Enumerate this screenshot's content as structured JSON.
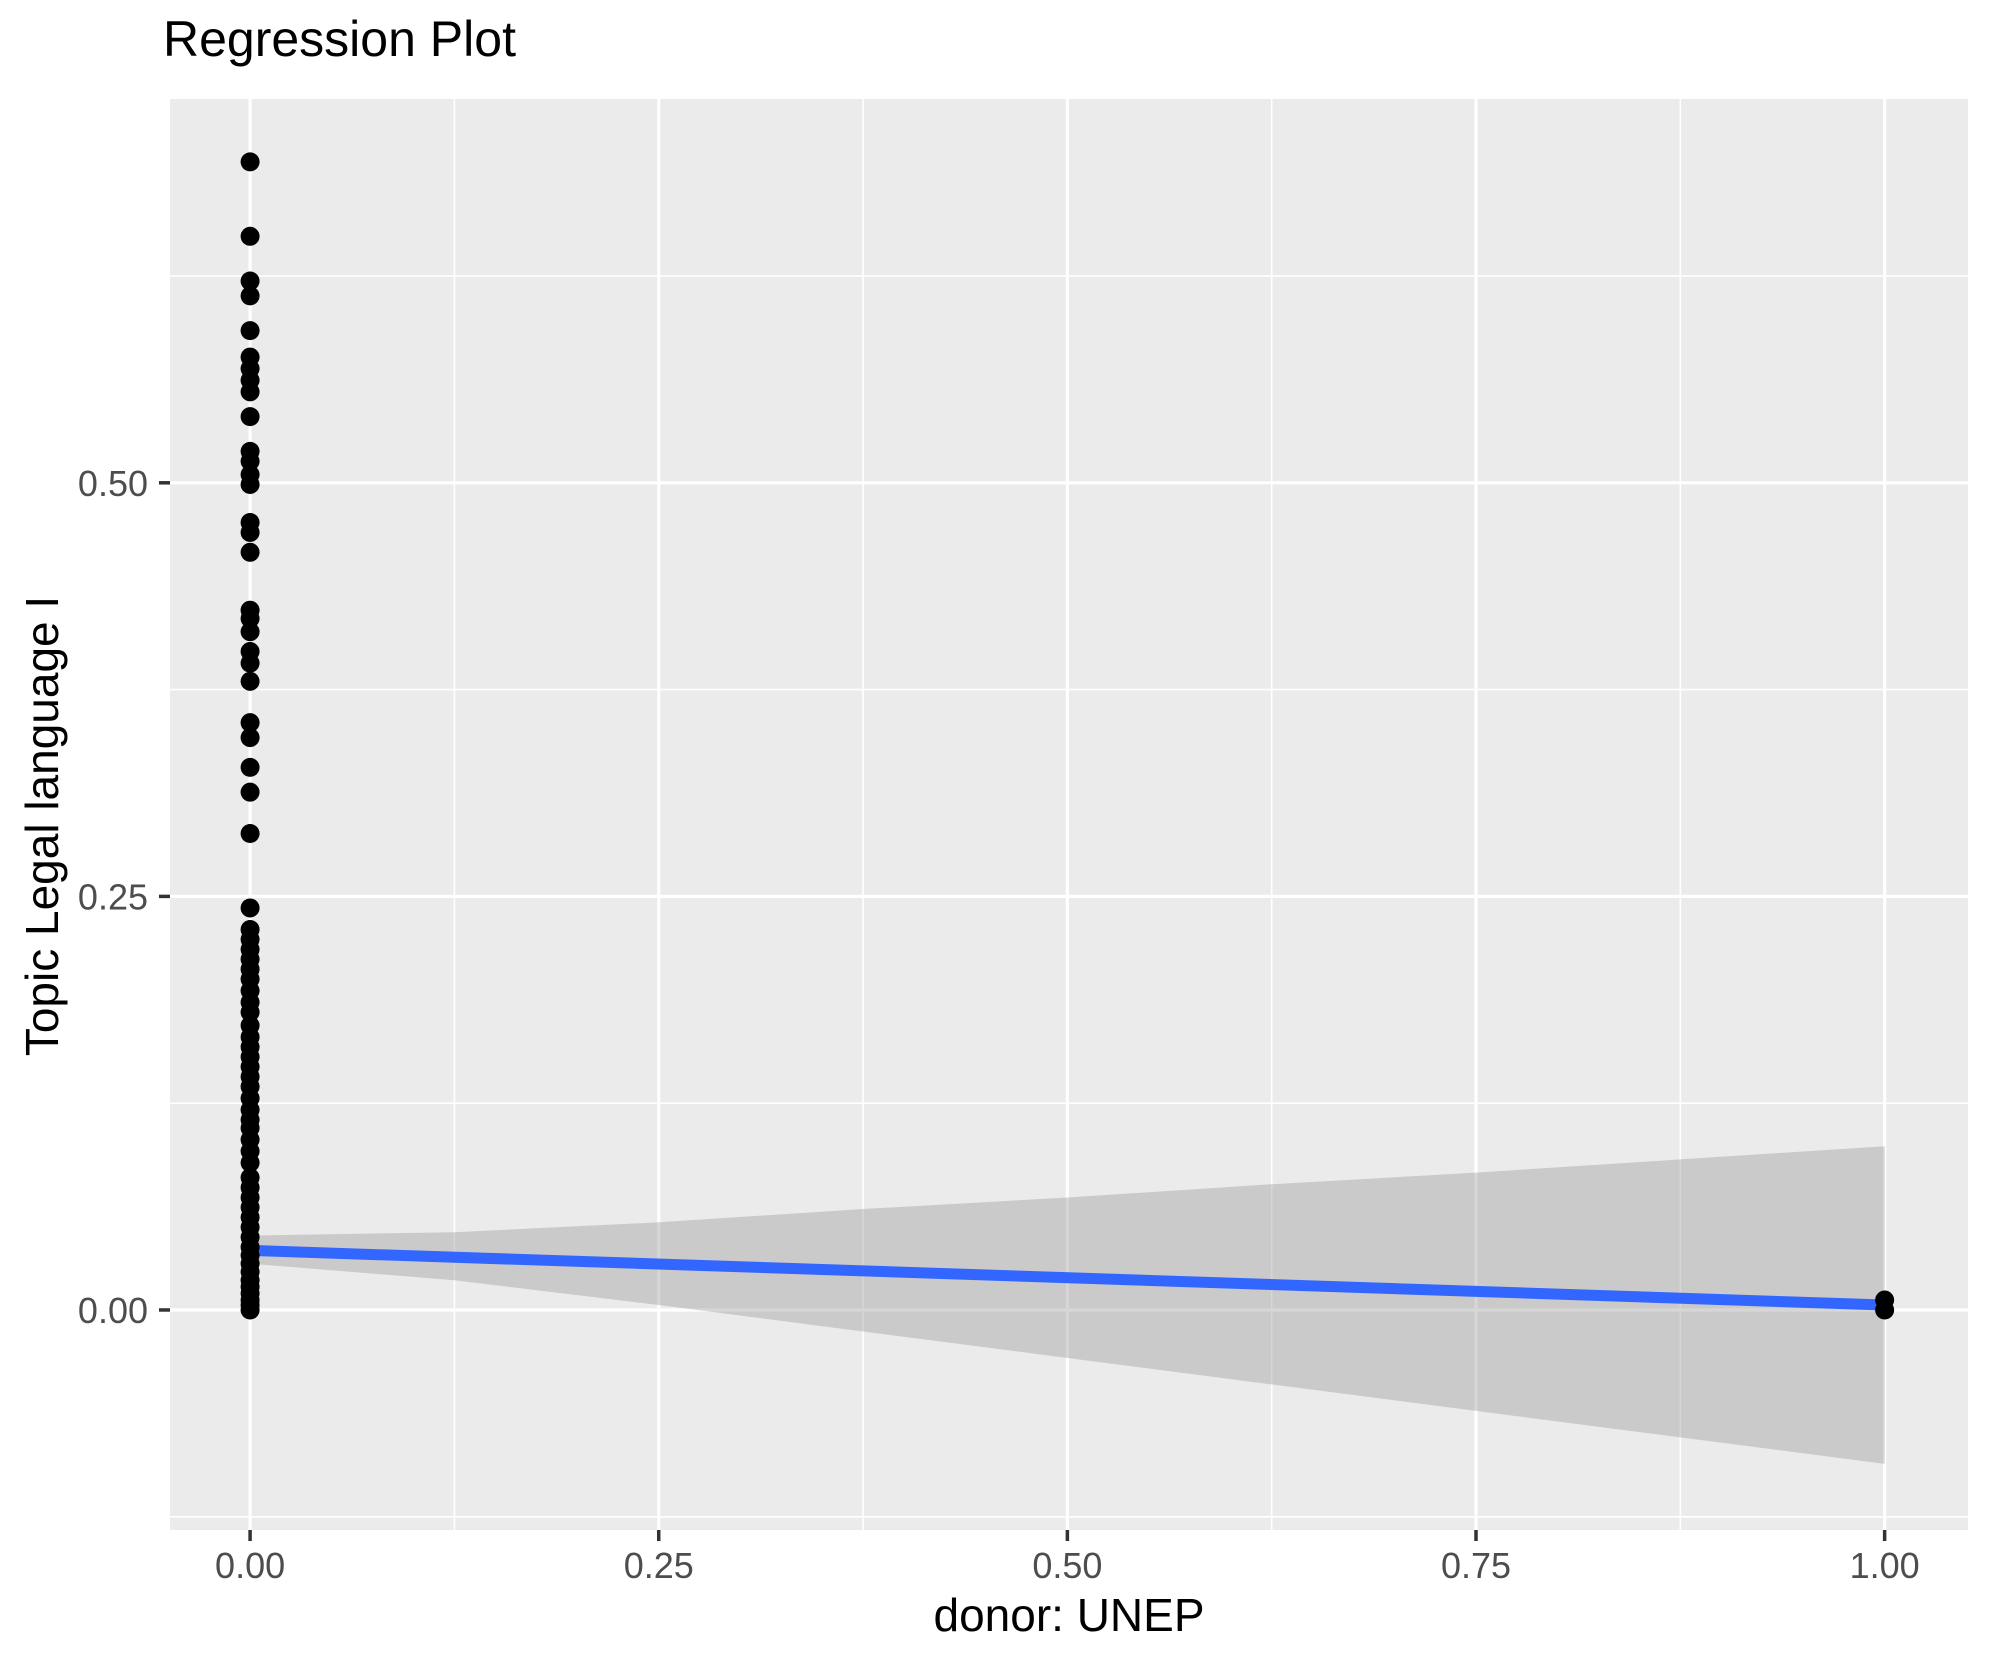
{
  "title": "Regression Plot",
  "axes": {
    "x": {
      "label": "donor: UNEP",
      "ticks": [
        {
          "v": 0.0,
          "label": "0.00"
        },
        {
          "v": 0.25,
          "label": "0.25"
        },
        {
          "v": 0.5,
          "label": "0.50"
        },
        {
          "v": 0.75,
          "label": "0.75"
        },
        {
          "v": 1.0,
          "label": "1.00"
        }
      ],
      "minor": [
        0.125,
        0.375,
        0.625,
        0.875
      ]
    },
    "y": {
      "label": "Topic Legal language I",
      "ticks": [
        {
          "v": 0.0,
          "label": "0.00"
        },
        {
          "v": 0.25,
          "label": "0.25"
        },
        {
          "v": 0.5,
          "label": "0.50"
        }
      ],
      "minor": [
        -0.125,
        0.125,
        0.375,
        0.625
      ]
    }
  },
  "colors": {
    "panel_background": "#EBEBEB",
    "gridline": "#FFFFFF",
    "point": "#000000",
    "regression_line": "#3366FF",
    "confidence_band": "rgba(153,153,153,0.4)",
    "tick_label": "#4D4D4D",
    "tick_mark": "#333333",
    "title_text": "#000000"
  },
  "chart_data": {
    "type": "scatter",
    "title": "Regression Plot",
    "xlabel": "donor: UNEP",
    "ylabel": "Topic Legal language I",
    "xlim": [
      -0.049,
      1.051
    ],
    "ylim": [
      -0.133,
      0.732
    ],
    "grid": "on",
    "legend": "none",
    "points": [
      [
        0,
        0.694
      ],
      [
        0,
        0.649
      ],
      [
        0,
        0.622
      ],
      [
        0,
        0.613
      ],
      [
        0,
        0.592
      ],
      [
        0,
        0.576
      ],
      [
        0,
        0.569
      ],
      [
        0,
        0.562
      ],
      [
        0,
        0.555
      ],
      [
        0,
        0.54
      ],
      [
        0,
        0.519
      ],
      [
        0,
        0.513
      ],
      [
        0,
        0.505
      ],
      [
        0,
        0.499
      ],
      [
        0,
        0.476
      ],
      [
        0,
        0.47
      ],
      [
        0,
        0.458
      ],
      [
        0,
        0.423
      ],
      [
        0,
        0.418
      ],
      [
        0,
        0.41
      ],
      [
        0,
        0.398
      ],
      [
        0,
        0.391
      ],
      [
        0,
        0.38
      ],
      [
        0,
        0.355
      ],
      [
        0,
        0.346
      ],
      [
        0,
        0.328
      ],
      [
        0,
        0.313
      ],
      [
        0,
        0.288
      ],
      [
        0,
        0.243
      ],
      [
        0,
        0.23
      ],
      [
        0,
        0.224
      ],
      [
        0,
        0.218
      ],
      [
        0,
        0.212
      ],
      [
        0,
        0.206
      ],
      [
        0,
        0.2
      ],
      [
        0,
        0.193
      ],
      [
        0,
        0.186
      ],
      [
        0,
        0.18
      ],
      [
        0,
        0.172
      ],
      [
        0,
        0.165
      ],
      [
        0,
        0.159
      ],
      [
        0,
        0.153
      ],
      [
        0,
        0.147
      ],
      [
        0,
        0.141
      ],
      [
        0,
        0.135
      ],
      [
        0,
        0.128
      ],
      [
        0,
        0.121
      ],
      [
        0,
        0.115
      ],
      [
        0,
        0.11
      ],
      [
        0,
        0.103
      ],
      [
        0,
        0.096
      ],
      [
        0,
        0.089
      ],
      [
        0,
        0.08
      ],
      [
        0,
        0.074
      ],
      [
        0,
        0.068
      ],
      [
        0,
        0.062
      ],
      [
        0,
        0.056
      ],
      [
        0,
        0.05
      ],
      [
        0,
        0.044
      ],
      [
        0,
        0.038
      ],
      [
        0,
        0.033
      ],
      [
        0,
        0.028
      ],
      [
        0,
        0.023
      ],
      [
        0,
        0.018
      ],
      [
        0,
        0.014
      ],
      [
        0,
        0.01
      ],
      [
        0,
        0.006
      ],
      [
        0,
        0.003
      ],
      [
        0,
        0.0
      ],
      [
        1,
        0.006
      ],
      [
        1,
        0.0
      ]
    ],
    "regression_line": {
      "x": [
        0,
        1
      ],
      "y": [
        0.036,
        0.003
      ]
    },
    "confidence_band": {
      "x": [
        0.0,
        0.125,
        0.25,
        0.375,
        0.5,
        0.625,
        0.75,
        0.875,
        1.0
      ],
      "upper": [
        0.045,
        0.047,
        0.053,
        0.061,
        0.068,
        0.076,
        0.083,
        0.091,
        0.099
      ],
      "lower": [
        0.028,
        0.018,
        0.003,
        -0.013,
        -0.029,
        -0.045,
        -0.061,
        -0.077,
        -0.093
      ]
    }
  }
}
